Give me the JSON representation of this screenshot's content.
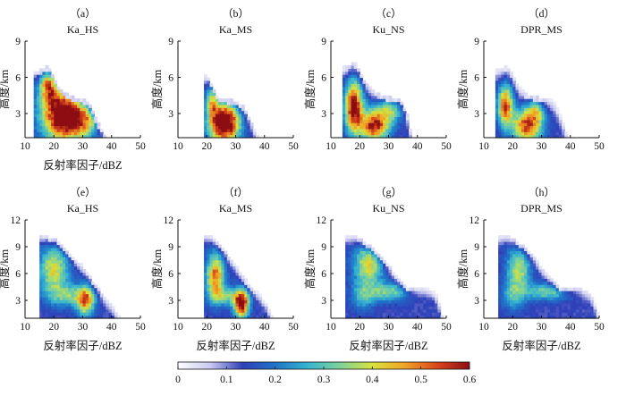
{
  "chart_data": [
    {
      "type": "heatmap",
      "label": "（a）",
      "title": "Ka_HS",
      "xlabel": "反射率因子/dBZ",
      "ylabel": "高度/km",
      "xlim": [
        10,
        50
      ],
      "ylim": [
        1,
        9
      ],
      "xticks": [
        "10",
        "20",
        "30",
        "40",
        "50"
      ],
      "yticks": [
        "3",
        "6",
        "9"
      ],
      "blobs": [
        [
          23,
          3.0,
          7,
          2.2,
          0.55
        ],
        [
          18,
          5.3,
          3,
          1.4,
          0.3
        ],
        [
          30,
          2.4,
          6,
          1.3,
          0.25
        ]
      ],
      "edge": [
        [
          15,
          6.6
        ],
        [
          18,
          7.0
        ],
        [
          20,
          6.1
        ],
        [
          22,
          5.1
        ],
        [
          25,
          4.6
        ],
        [
          28,
          4.3
        ],
        [
          31,
          4.2
        ],
        [
          33,
          3.6
        ],
        [
          35,
          2.4
        ],
        [
          37,
          1.6
        ],
        [
          38,
          1.0
        ]
      ],
      "xmin": 13.5,
      "ymin": 1.0
    },
    {
      "type": "heatmap",
      "label": "（b）",
      "title": "Ka_MS",
      "xlabel": "",
      "ylabel": "高度/km",
      "xlim": [
        10,
        50
      ],
      "ylim": [
        1,
        9
      ],
      "xticks": [
        "10",
        "20",
        "30",
        "40",
        "50"
      ],
      "yticks": [
        "3",
        "6",
        "9"
      ],
      "blobs": [
        [
          26,
          2.3,
          5,
          1.6,
          0.62
        ],
        [
          22,
          4.2,
          2,
          1.3,
          0.25
        ]
      ],
      "edge": [
        [
          20,
          6.2
        ],
        [
          21,
          5.9
        ],
        [
          22,
          5.2
        ],
        [
          24,
          4.4
        ],
        [
          27,
          4.2
        ],
        [
          30,
          4.1
        ],
        [
          33,
          3.6
        ],
        [
          35,
          2.6
        ],
        [
          37,
          1.6
        ],
        [
          38,
          1.0
        ]
      ],
      "xmin": 19.5,
      "ymin": 1.0
    },
    {
      "type": "heatmap",
      "label": "（c）",
      "title": "Ku_NS",
      "xlabel": "",
      "ylabel": "高度/km",
      "xlim": [
        10,
        50
      ],
      "ylim": [
        1,
        9
      ],
      "xticks": [
        "10",
        "20",
        "30",
        "40",
        "50"
      ],
      "yticks": [
        "3",
        "6",
        "9"
      ],
      "blobs": [
        [
          18,
          3.6,
          3,
          2.0,
          0.5
        ],
        [
          25,
          2.0,
          5,
          1.2,
          0.45
        ],
        [
          30,
          3.4,
          5,
          1.0,
          0.22
        ]
      ],
      "edge": [
        [
          15,
          6.9
        ],
        [
          18,
          7.3
        ],
        [
          20,
          6.6
        ],
        [
          22,
          5.6
        ],
        [
          25,
          4.9
        ],
        [
          28,
          4.5
        ],
        [
          31,
          4.4
        ],
        [
          34,
          4.2
        ],
        [
          36,
          3.4
        ],
        [
          37,
          2.4
        ],
        [
          38,
          1.2
        ],
        [
          39,
          1.0
        ]
      ],
      "xmin": 14.5,
      "ymin": 1.0
    },
    {
      "type": "heatmap",
      "label": "（d）",
      "title": "DPR_MS",
      "xlabel": "",
      "ylabel": "高度/km",
      "xlim": [
        10,
        50
      ],
      "ylim": [
        1,
        9
      ],
      "xticks": [
        "10",
        "20",
        "30",
        "40",
        "50"
      ],
      "yticks": [
        "3",
        "6",
        "9"
      ],
      "blobs": [
        [
          17.5,
          3.7,
          2.5,
          1.6,
          0.42
        ],
        [
          25,
          2.0,
          5,
          1.3,
          0.42
        ],
        [
          28,
          3.4,
          3,
          1.0,
          0.2
        ]
      ],
      "edge": [
        [
          15,
          6.7
        ],
        [
          18,
          7.0
        ],
        [
          20,
          6.3
        ],
        [
          22,
          5.3
        ],
        [
          25,
          4.6
        ],
        [
          28,
          4.4
        ],
        [
          31,
          4.3
        ],
        [
          34,
          4.1
        ],
        [
          36,
          3.2
        ],
        [
          38,
          2.0
        ],
        [
          39,
          1.0
        ]
      ],
      "xmin": 14.5,
      "ymin": 1.0
    },
    {
      "type": "heatmap",
      "label": "（e）",
      "title": "Ka_HS",
      "xlabel": "反射率因子/dBZ",
      "ylabel": "高度/km",
      "xlim": [
        10,
        50
      ],
      "ylim": [
        1,
        12
      ],
      "xticks": [
        "10",
        "20",
        "30",
        "40",
        "50"
      ],
      "yticks": [
        "3",
        "6",
        "9",
        "12"
      ],
      "blobs": [
        [
          20,
          6.5,
          5,
          2.6,
          0.28
        ],
        [
          31,
          3.0,
          3,
          1.6,
          0.35
        ],
        [
          25,
          3.6,
          7,
          1.2,
          0.18
        ]
      ],
      "edge": [
        [
          15,
          10.3
        ],
        [
          18,
          10.1
        ],
        [
          20,
          9.9
        ],
        [
          24,
          8.9
        ],
        [
          27,
          7.8
        ],
        [
          30,
          6.9
        ],
        [
          33,
          5.5
        ],
        [
          35,
          4.5
        ],
        [
          37,
          3.6
        ],
        [
          40,
          2.6
        ],
        [
          42,
          1.5
        ],
        [
          43,
          1.0
        ]
      ],
      "xmin": 15.0,
      "ymin": 1.0
    },
    {
      "type": "heatmap",
      "label": "（f）",
      "title": "Ka_MS",
      "xlabel": "反射率因子/dBZ",
      "ylabel": "高度/km",
      "xlim": [
        10,
        50
      ],
      "ylim": [
        1,
        12
      ],
      "xticks": [
        "10",
        "20",
        "30",
        "40",
        "50"
      ],
      "yticks": [
        "3",
        "6",
        "9",
        "12"
      ],
      "blobs": [
        [
          23,
          5.8,
          3,
          2.4,
          0.38
        ],
        [
          32,
          2.6,
          2.5,
          1.5,
          0.5
        ],
        [
          27,
          3.5,
          6,
          1.0,
          0.18
        ]
      ],
      "edge": [
        [
          20,
          10.4
        ],
        [
          22,
          10.1
        ],
        [
          25,
          9.2
        ],
        [
          27,
          8.2
        ],
        [
          30,
          7.1
        ],
        [
          32,
          6.0
        ],
        [
          35,
          4.6
        ],
        [
          38,
          3.8
        ],
        [
          41,
          2.6
        ],
        [
          42,
          1.5
        ],
        [
          43,
          1.0
        ]
      ],
      "xmin": 19.5,
      "ymin": 1.0
    },
    {
      "type": "heatmap",
      "label": "（g）",
      "title": "Ku_NS",
      "xlabel": "反射率因子/dBZ",
      "ylabel": "高度/km",
      "xlim": [
        10,
        50
      ],
      "ylim": [
        1,
        12
      ],
      "xticks": [
        "10",
        "20",
        "30",
        "40",
        "50"
      ],
      "yticks": [
        "3",
        "6",
        "9",
        "12"
      ],
      "blobs": [
        [
          23,
          7.0,
          5,
          2.2,
          0.28
        ],
        [
          30,
          4.0,
          7,
          1.0,
          0.2
        ],
        [
          21,
          3.5,
          4,
          1.6,
          0.14
        ]
      ],
      "edge": [
        [
          15,
          10.3
        ],
        [
          18,
          10.3
        ],
        [
          20,
          9.9
        ],
        [
          24,
          9.0
        ],
        [
          27,
          8.0
        ],
        [
          30,
          6.9
        ],
        [
          33,
          5.6
        ],
        [
          35,
          4.8
        ],
        [
          38,
          4.4
        ],
        [
          42,
          4.4
        ],
        [
          45,
          4.2
        ],
        [
          47,
          3.4
        ],
        [
          48,
          2.0
        ],
        [
          49,
          1.0
        ]
      ],
      "xmin": 15.0,
      "ymin": 1.0
    },
    {
      "type": "heatmap",
      "label": "（h）",
      "title": "DPR_MS",
      "xlabel": "反射率因子/dBZ",
      "ylabel": "高度/km",
      "xlim": [
        10,
        50
      ],
      "ylim": [
        1,
        12
      ],
      "xticks": [
        "10",
        "20",
        "30",
        "40",
        "50"
      ],
      "yticks": [
        "3",
        "6",
        "9",
        "12"
      ],
      "blobs": [
        [
          22,
          6.5,
          4,
          2.4,
          0.25
        ],
        [
          32,
          4.0,
          8,
          0.9,
          0.2
        ],
        [
          20,
          3.5,
          4,
          1.6,
          0.13
        ]
      ],
      "edge": [
        [
          15,
          10.3
        ],
        [
          18,
          10.3
        ],
        [
          20,
          10.0
        ],
        [
          24,
          9.0
        ],
        [
          27,
          8.0
        ],
        [
          30,
          6.8
        ],
        [
          33,
          5.5
        ],
        [
          36,
          4.6
        ],
        [
          40,
          4.4
        ],
        [
          44,
          4.3
        ],
        [
          47,
          3.8
        ],
        [
          49,
          2.2
        ],
        [
          50,
          1.0
        ]
      ],
      "xmin": 15.0,
      "ymin": 1.0
    }
  ],
  "colorbar": {
    "min": 0,
    "max": 0.6,
    "ticks": [
      "0",
      "0.1",
      "0.2",
      "0.3",
      "0.4",
      "0.5",
      "0.6"
    ],
    "colormap": [
      "#ffffff",
      "#c9c9f0",
      "#2f3fb8",
      "#1f74c9",
      "#36b4d0",
      "#7fd29a",
      "#d8e23c",
      "#f1a325",
      "#d9461c",
      "#8c0d12"
    ]
  }
}
